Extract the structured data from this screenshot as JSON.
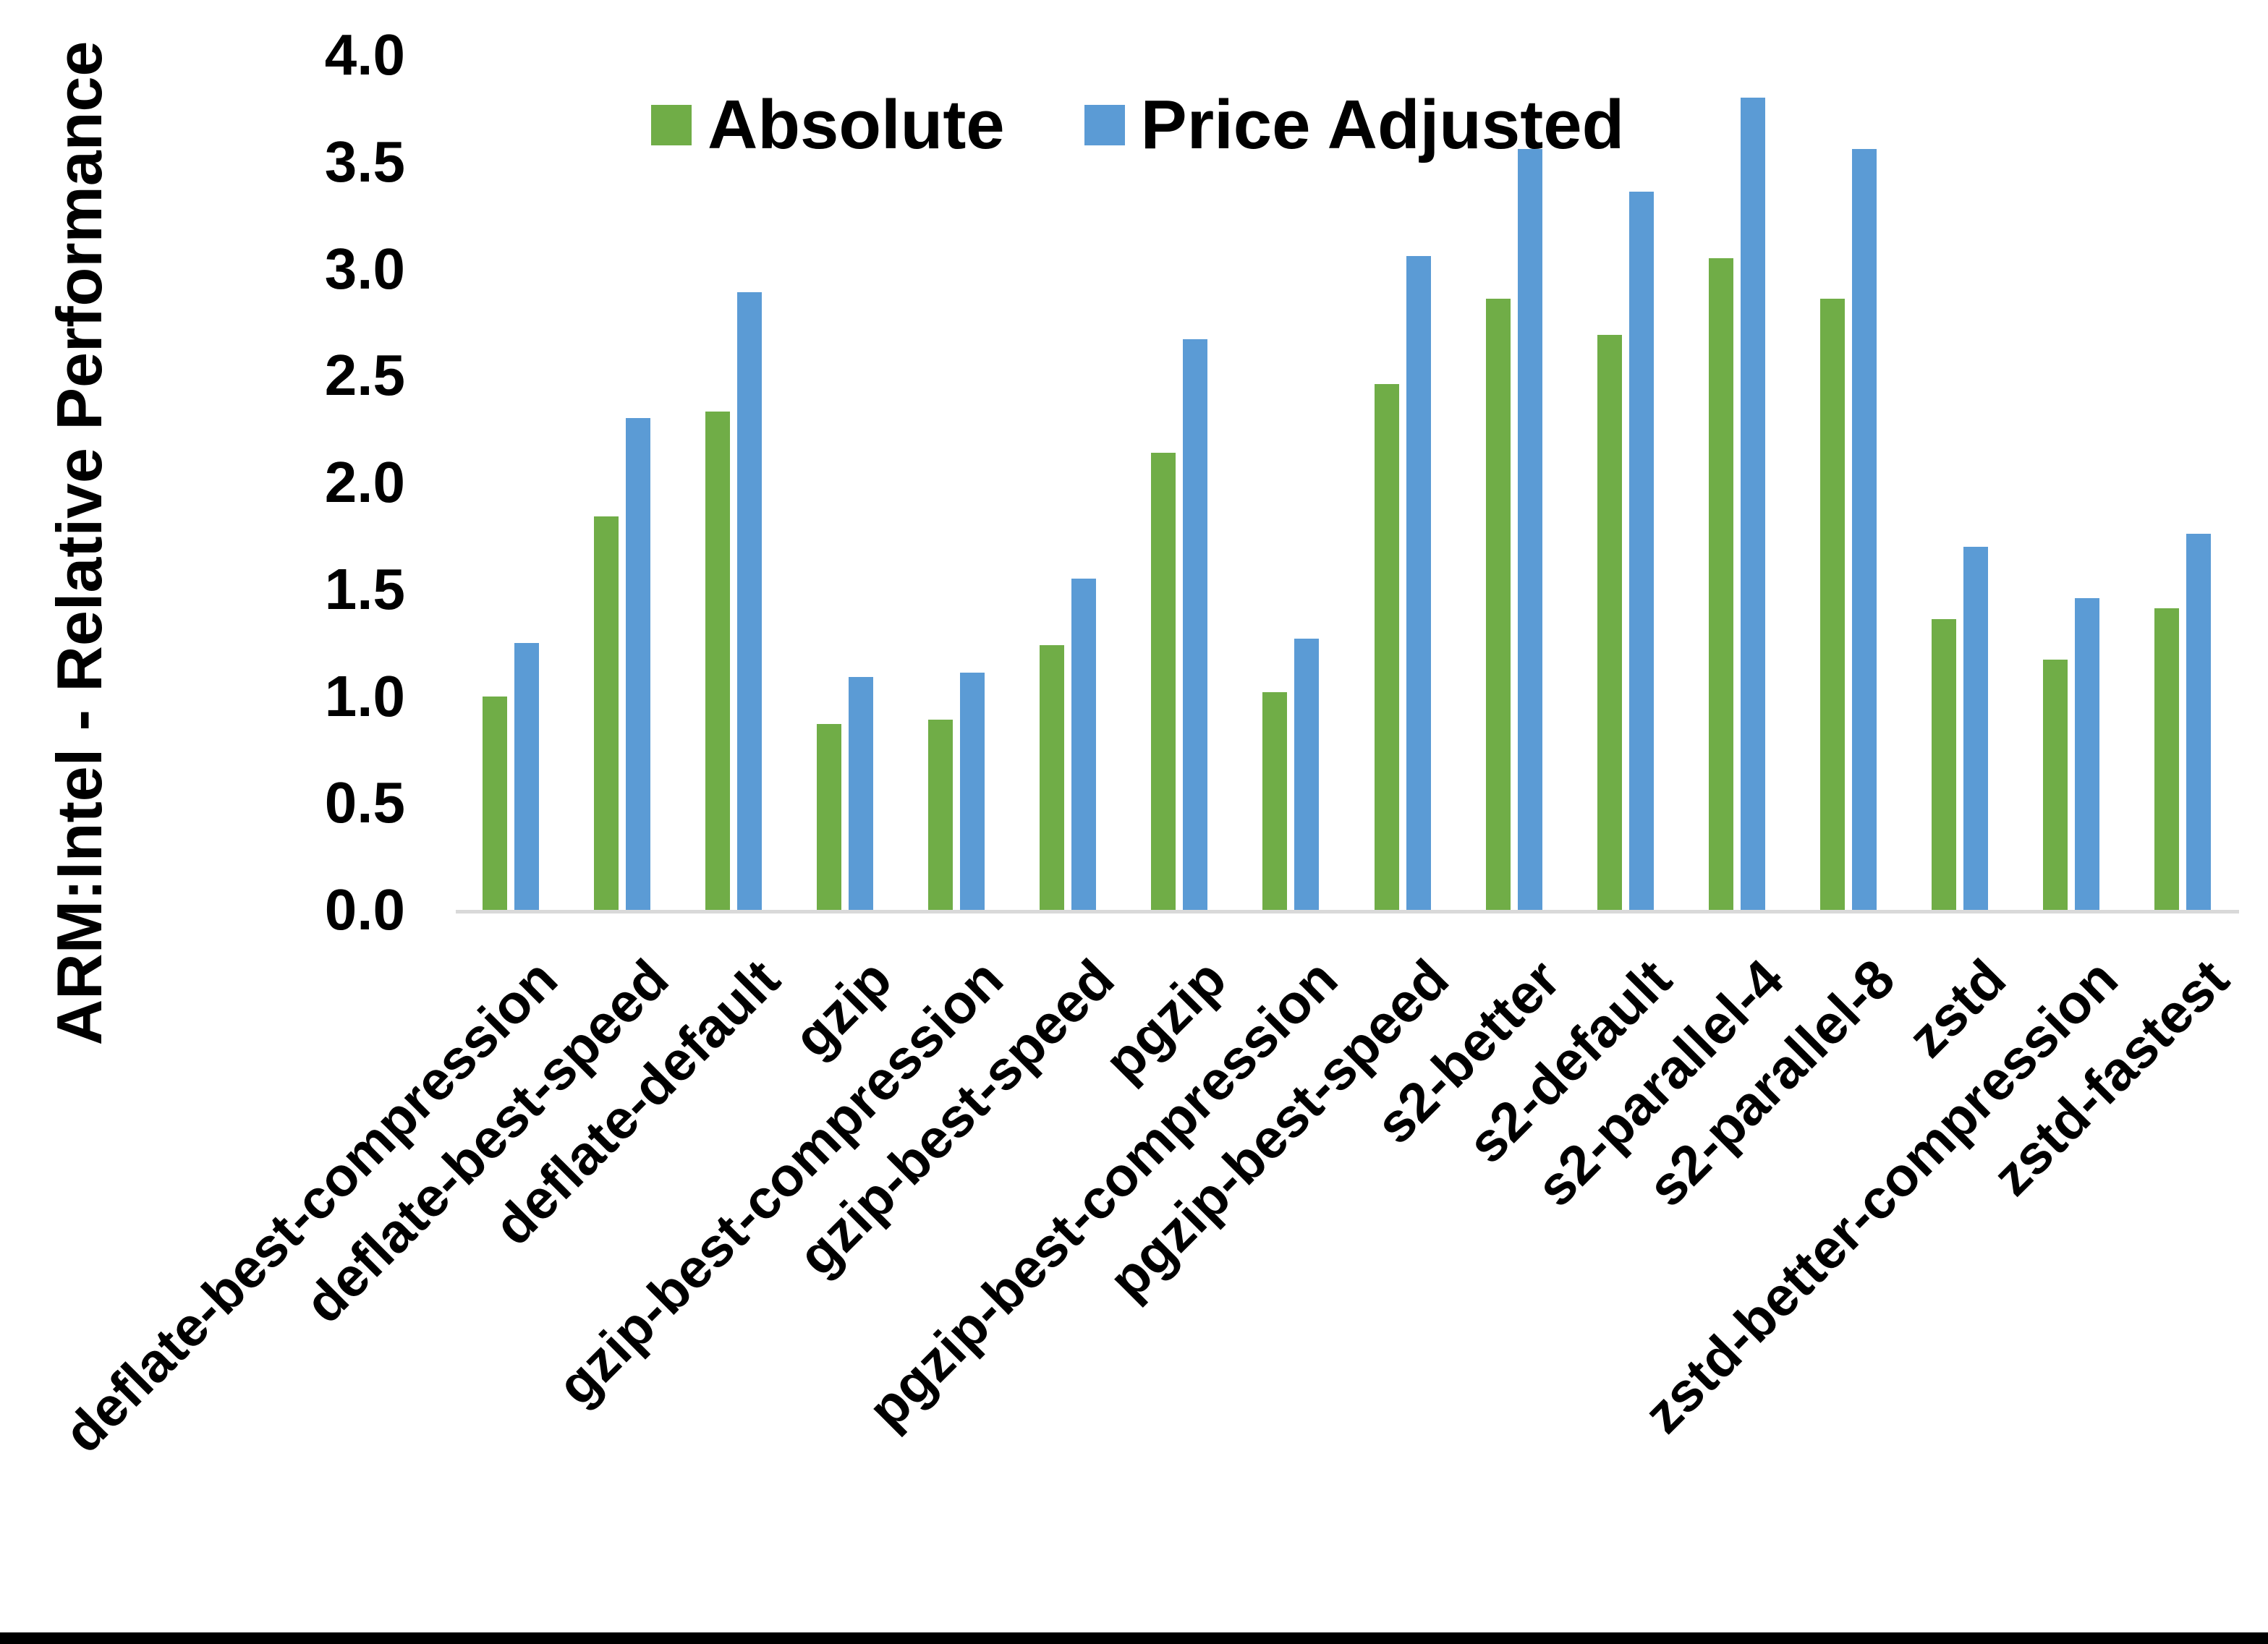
{
  "chart_data": {
    "type": "bar",
    "title": "",
    "ylabel": "ARM:Intel - Relative Performance",
    "xlabel": "",
    "ylim": [
      0.0,
      4.0
    ],
    "ytick_step": 0.5,
    "ytick_labels": [
      "0.0",
      "0.5",
      "1.0",
      "1.5",
      "2.0",
      "2.5",
      "3.0",
      "3.5",
      "4.0"
    ],
    "grid": false,
    "legend_position": "top-center",
    "categories": [
      "deflate-best-compression",
      "deflate-best-speed",
      "deflate-default",
      "gzip",
      "gzip-best-compression",
      "gzip-best-speed",
      "pgzip",
      "pgzip-best-compression",
      "pgzip-best-speed",
      "s2-better",
      "s2-default",
      "s2-parallel-4",
      "s2-parallel-8",
      "zstd",
      "zstd-better-compression",
      "zstd-fastest"
    ],
    "series": [
      {
        "name": "Absolute",
        "color": "#70AD47",
        "values": [
          1.0,
          1.84,
          2.33,
          0.87,
          0.89,
          1.24,
          2.14,
          1.02,
          2.46,
          2.86,
          2.69,
          3.05,
          2.86,
          1.36,
          1.17,
          1.41
        ]
      },
      {
        "name": "Price Adjusted",
        "color": "#5B9BD5",
        "values": [
          1.25,
          2.3,
          2.89,
          1.09,
          1.11,
          1.55,
          2.67,
          1.27,
          3.06,
          3.56,
          3.36,
          3.8,
          3.56,
          1.7,
          1.46,
          1.76
        ]
      }
    ],
    "colors": {
      "absolute": "#70AD47",
      "price_adjusted": "#5B9BD5",
      "baseline": "#D9D9D9",
      "text": "#000000",
      "background": "#FFFFFF"
    }
  }
}
